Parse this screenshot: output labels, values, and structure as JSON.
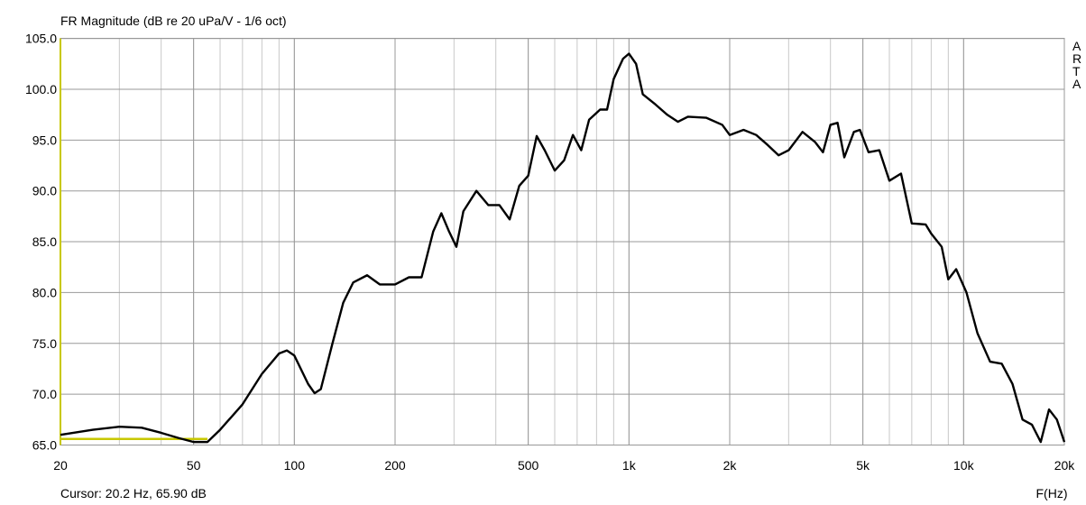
{
  "chart_data": {
    "type": "line",
    "title": "FR Magnitude (dB re 20 uPa/V - 1/6 oct)",
    "annotation": "ARTA",
    "cursor": "Cursor: 20.2 Hz, 65.90 dB",
    "x_label": "F(Hz)",
    "x_log": true,
    "grid": true,
    "xlim": [
      20,
      20000
    ],
    "ylim": [
      65,
      105
    ],
    "xticks": [
      20,
      50,
      100,
      200,
      500,
      {
        "value": 1000,
        "label": "1k"
      },
      {
        "value": 2000,
        "label": "2k"
      },
      {
        "value": 5000,
        "label": "5k"
      },
      {
        "value": 10000,
        "label": "10k"
      },
      {
        "value": 20000,
        "label": "20k"
      }
    ],
    "yticks": [
      {
        "value": 65,
        "label": "65.0"
      },
      {
        "value": 70,
        "label": "70.0"
      },
      {
        "value": 75,
        "label": "75.0"
      },
      {
        "value": 80,
        "label": "80.0"
      },
      {
        "value": 85,
        "label": "85.0"
      },
      {
        "value": 90,
        "label": "90.0"
      },
      {
        "value": 95,
        "label": "95.0"
      },
      {
        "value": 100,
        "label": "100.0"
      },
      {
        "value": 105,
        "label": "105.0"
      }
    ],
    "series": [
      {
        "color": "#000000",
        "x": [
          20,
          25,
          30,
          35,
          40,
          45,
          50,
          55,
          60,
          70,
          80,
          90,
          95,
          100,
          110,
          115,
          120,
          130,
          140,
          150,
          165,
          180,
          200,
          220,
          240,
          260,
          275,
          290,
          305,
          320,
          350,
          380,
          410,
          440,
          470,
          500,
          530,
          560,
          600,
          640,
          680,
          720,
          760,
          820,
          860,
          900,
          960,
          1000,
          1050,
          1100,
          1200,
          1300,
          1400,
          1500,
          1700,
          1900,
          2000,
          2200,
          2400,
          2600,
          2800,
          3000,
          3300,
          3600,
          3800,
          4000,
          4200,
          4400,
          4700,
          4900,
          5200,
          5600,
          6000,
          6500,
          7000,
          7700,
          8000,
          8600,
          9000,
          9500,
          10200,
          11000,
          12000,
          13000,
          14000,
          15000,
          16000,
          17000,
          18000,
          19000,
          20000
        ],
        "values": [
          66.0,
          66.5,
          66.8,
          66.7,
          66.2,
          65.7,
          65.3,
          65.3,
          66.5,
          69.0,
          72.0,
          74.0,
          74.3,
          73.8,
          71.0,
          70.1,
          70.5,
          75.0,
          79.0,
          81.0,
          81.7,
          80.8,
          80.8,
          81.5,
          81.5,
          86.0,
          87.8,
          86.0,
          84.5,
          88.0,
          90.0,
          88.6,
          88.6,
          87.2,
          90.5,
          91.5,
          95.4,
          94.0,
          92.0,
          93.0,
          95.5,
          94.0,
          97.0,
          98.0,
          98.0,
          101.0,
          103.0,
          103.5,
          102.5,
          99.5,
          98.5,
          97.5,
          96.8,
          97.3,
          97.2,
          96.5,
          95.5,
          96.0,
          95.5,
          94.5,
          93.5,
          94.0,
          95.8,
          94.8,
          93.8,
          96.5,
          96.7,
          93.3,
          95.8,
          96.0,
          93.8,
          94.0,
          91.0,
          91.7,
          86.8,
          86.7,
          85.8,
          84.5,
          81.3,
          82.3,
          80.0,
          76.0,
          73.2,
          73.0,
          71.0,
          67.5,
          67.0,
          65.3,
          68.5,
          67.5,
          65.3
        ]
      },
      {
        "color": "#c8c800",
        "x": [
          20,
          55
        ],
        "values": [
          65.6,
          65.6
        ]
      }
    ]
  }
}
